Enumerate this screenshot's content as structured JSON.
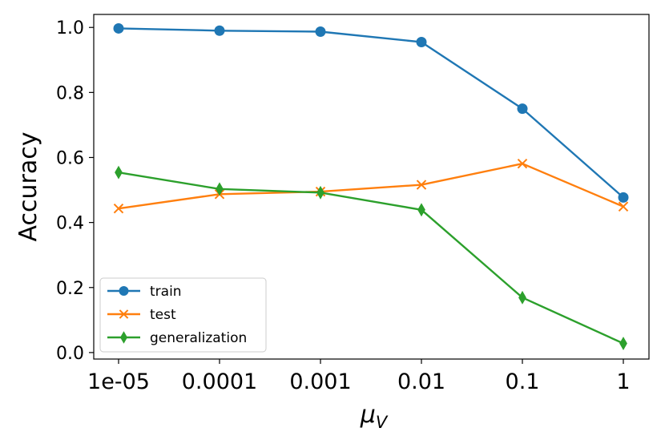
{
  "chart_data": {
    "type": "line",
    "title": "",
    "xlabel_symbol": "μ",
    "xlabel_subscript": "V",
    "ylabel": "Accuracy",
    "categories": [
      "1e-05",
      "0.0001",
      "0.001",
      "0.01",
      "0.1",
      "1"
    ],
    "ylim": [
      -0.02,
      1.04
    ],
    "yticks": [
      "0.0",
      "0.2",
      "0.4",
      "0.6",
      "0.8",
      "1.0"
    ],
    "grid": false,
    "legend_position": "lower-left",
    "series": [
      {
        "name": "train",
        "color": "#1f77b4",
        "marker": "circle",
        "values": [
          0.997,
          0.99,
          0.987,
          0.955,
          0.75,
          0.477
        ]
      },
      {
        "name": "test",
        "color": "#ff7f0e",
        "marker": "x",
        "values": [
          0.443,
          0.487,
          0.495,
          0.516,
          0.581,
          0.449
        ]
      },
      {
        "name": "generalization",
        "color": "#2ca02c",
        "marker": "diamond",
        "values": [
          0.554,
          0.503,
          0.492,
          0.439,
          0.169,
          0.028
        ]
      }
    ]
  }
}
